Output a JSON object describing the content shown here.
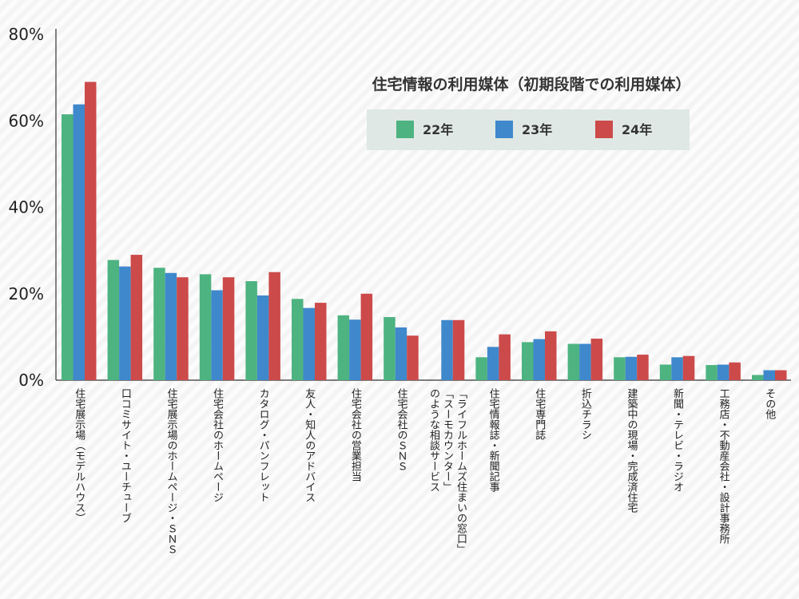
{
  "chart_data": {
    "type": "bar",
    "title": "住宅情報の利用媒体（初期段階での利用媒体）",
    "ylim": [
      0,
      80
    ],
    "yticks": [
      "0%",
      "20%",
      "40%",
      "60%",
      "80%"
    ],
    "ytick_values": [
      0,
      20,
      40,
      60,
      80
    ],
    "legend_position": "top-right",
    "grid": false,
    "categories": [
      [
        "住宅展示場（モデルハウス）"
      ],
      [
        "口コミサイト・ユーチューブ"
      ],
      [
        "住宅展示場のホームページ・ＳＮＳ"
      ],
      [
        "住宅会社のホームページ"
      ],
      [
        "カタログ・パンフレット"
      ],
      [
        "友人・知人のアドバイス"
      ],
      [
        "住宅会社の営業担当"
      ],
      [
        "住宅会社のＳＮＳ"
      ],
      [
        "「ライフルホームズ住まいの窓口」",
        "「スーモカウンター」",
        "のような相談サービス"
      ],
      [
        "住宅情報誌・新聞記事"
      ],
      [
        "住宅専門誌"
      ],
      [
        "折込チラシ"
      ],
      [
        "建築中の現場・完成済住宅"
      ],
      [
        "新聞・テレビ・ラジオ"
      ],
      [
        "工務店・不動産会社・設計事務所"
      ],
      [
        "その他"
      ]
    ],
    "series": [
      {
        "name": "22年",
        "color": "#4db380",
        "values": [
          61.5,
          27.8,
          26.0,
          24.5,
          22.9,
          18.8,
          15.0,
          14.6,
          null,
          5.3,
          8.8,
          8.4,
          5.3,
          3.6,
          3.5,
          1.2
        ]
      },
      {
        "name": "23年",
        "color": "#3f88cc",
        "values": [
          63.8,
          26.3,
          24.8,
          20.8,
          19.6,
          16.7,
          14.0,
          12.2,
          13.9,
          7.7,
          9.5,
          8.4,
          5.4,
          5.3,
          3.6,
          2.3
        ]
      },
      {
        "name": "24年",
        "color": "#cc4a4a",
        "values": [
          69.0,
          29.0,
          23.8,
          23.8,
          25.0,
          17.9,
          20.0,
          10.3,
          13.9,
          10.6,
          11.3,
          9.6,
          5.9,
          5.6,
          4.1,
          2.3
        ]
      }
    ]
  }
}
